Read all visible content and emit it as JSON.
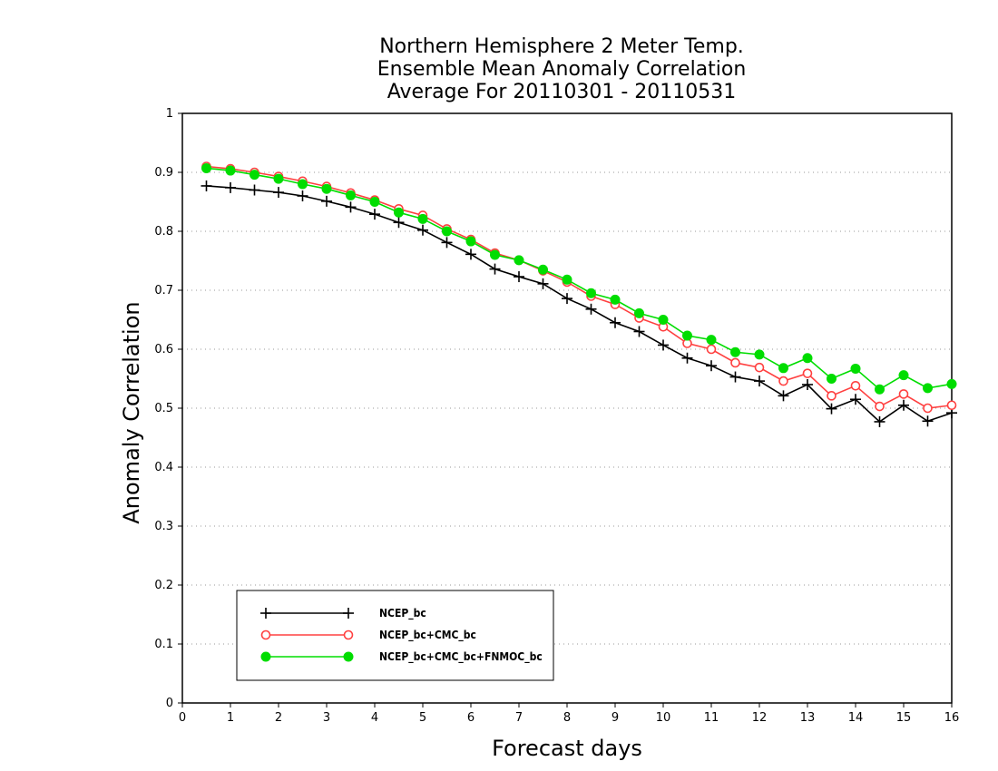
{
  "chart_data": {
    "type": "line",
    "title": [
      "Northern Hemisphere 2 Meter Temp.",
      "Ensemble Mean Anomaly Correlation",
      "Average For 20110301 - 20110531"
    ],
    "xlabel": "Forecast days",
    "ylabel": "Anomaly Correlation",
    "xlim": [
      0,
      16
    ],
    "ylim": [
      0,
      1
    ],
    "xticks": [
      "0",
      "1",
      "2",
      "3",
      "4",
      "5",
      "6",
      "7",
      "8",
      "9",
      "10",
      "11",
      "12",
      "13",
      "14",
      "15",
      "16"
    ],
    "yticks": [
      "0",
      "0.1",
      "0.2",
      "0.3",
      "0.4",
      "0.5",
      "0.6",
      "0.7",
      "0.8",
      "0.9",
      "1"
    ],
    "grid": true,
    "legend_position": "bottom-left",
    "x": [
      0.5,
      1,
      1.5,
      2,
      2.5,
      3,
      3.5,
      4,
      4.5,
      5,
      5.5,
      6,
      6.5,
      7,
      7.5,
      8,
      8.5,
      9,
      9.5,
      10,
      10.5,
      11,
      11.5,
      12,
      12.5,
      13,
      13.5,
      14,
      14.5,
      15,
      15.5,
      16
    ],
    "series": [
      {
        "name": "NCEP_bc",
        "color": "#000000",
        "marker": "plus",
        "values": [
          0.877,
          0.874,
          0.87,
          0.866,
          0.86,
          0.851,
          0.841,
          0.829,
          0.815,
          0.802,
          0.781,
          0.761,
          0.736,
          0.723,
          0.711,
          0.686,
          0.668,
          0.645,
          0.63,
          0.607,
          0.585,
          0.572,
          0.553,
          0.546,
          0.521,
          0.54,
          0.499,
          0.515,
          0.477,
          0.505,
          0.478,
          0.492
        ]
      },
      {
        "name": "NCEP_bc+CMC_bc",
        "color": "#ff4040",
        "marker": "open-circle",
        "values": [
          0.91,
          0.906,
          0.9,
          0.893,
          0.885,
          0.876,
          0.865,
          0.853,
          0.838,
          0.827,
          0.804,
          0.786,
          0.763,
          0.751,
          0.733,
          0.714,
          0.69,
          0.676,
          0.653,
          0.638,
          0.61,
          0.6,
          0.577,
          0.569,
          0.546,
          0.559,
          0.521,
          0.538,
          0.503,
          0.524,
          0.5,
          0.505
        ]
      },
      {
        "name": "NCEP_bc+CMC_bc+FNMOC_bc",
        "color": "#00dd00",
        "marker": "filled-circle",
        "values": [
          0.907,
          0.903,
          0.896,
          0.889,
          0.88,
          0.872,
          0.861,
          0.85,
          0.832,
          0.821,
          0.8,
          0.783,
          0.76,
          0.751,
          0.735,
          0.718,
          0.695,
          0.684,
          0.661,
          0.65,
          0.623,
          0.616,
          0.595,
          0.591,
          0.568,
          0.585,
          0.55,
          0.567,
          0.532,
          0.556,
          0.534,
          0.541
        ]
      }
    ]
  }
}
